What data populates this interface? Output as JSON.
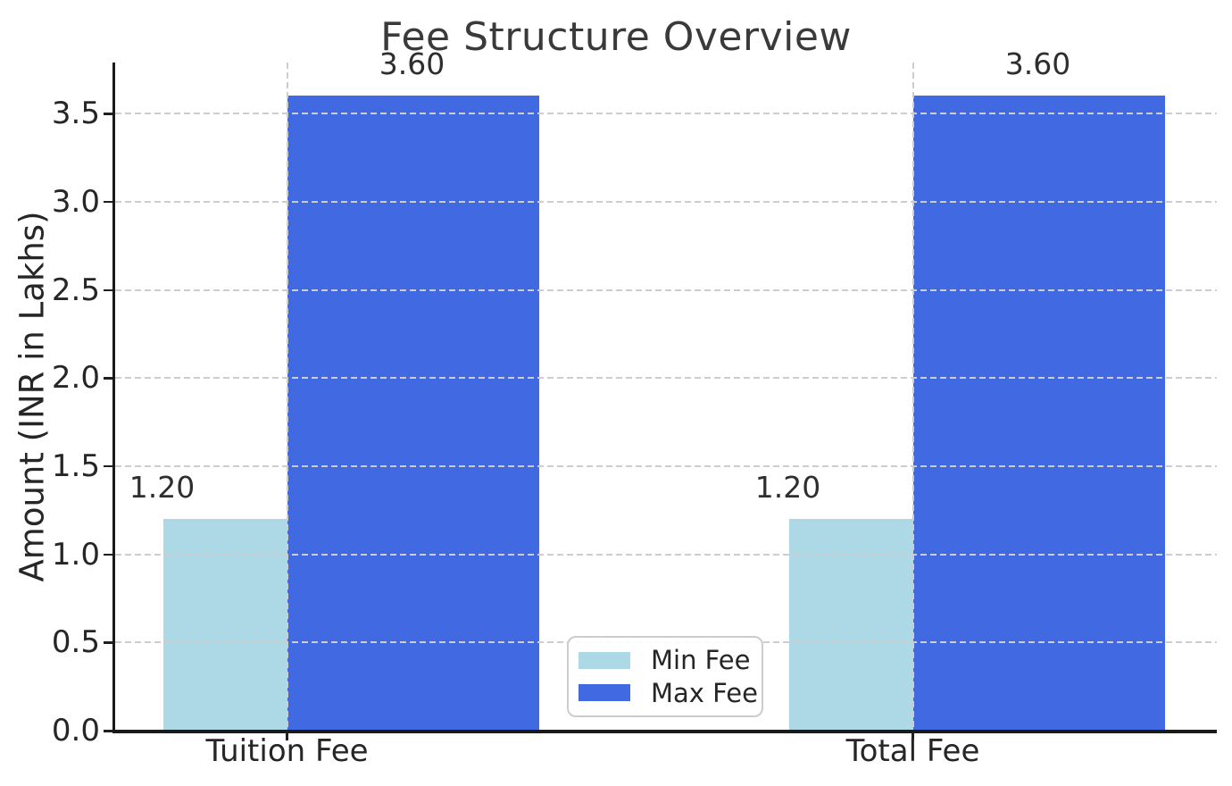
{
  "chart_data": {
    "type": "bar",
    "title": "Fee Structure Overview",
    "ylabel": "Amount (INR in Lakhs)",
    "xlabel": "",
    "categories": [
      "Tuition Fee",
      "Total Fee"
    ],
    "series": [
      {
        "name": "Min Fee",
        "color": "#ADD8E6",
        "values": [
          1.2,
          1.2
        ],
        "value_labels": [
          "1.20",
          "1.20"
        ]
      },
      {
        "name": "Max Fee",
        "color": "#4169E1",
        "values": [
          3.6,
          3.6
        ],
        "value_labels": [
          "3.60",
          "3.60"
        ]
      }
    ],
    "ylim": [
      0,
      3.79
    ],
    "yticks": [
      0.0,
      0.5,
      1.0,
      1.5,
      2.0,
      2.5,
      3.0,
      3.5
    ],
    "ytick_labels": [
      "0.0",
      "0.5",
      "1.0",
      "1.5",
      "2.0",
      "2.5",
      "3.0",
      "3.5"
    ],
    "grid": {
      "style": "dashed",
      "horizontal": true,
      "vertical": true,
      "color": "#cdcdcd",
      "on_top_of_bars": true
    },
    "legend": {
      "position": "lower center",
      "entries": [
        "Min Fee",
        "Max Fee"
      ]
    },
    "colors": {
      "background": "#ffffff",
      "spine": "#1a1a1a",
      "text": "#262626",
      "title": "#3a3a3a"
    }
  }
}
